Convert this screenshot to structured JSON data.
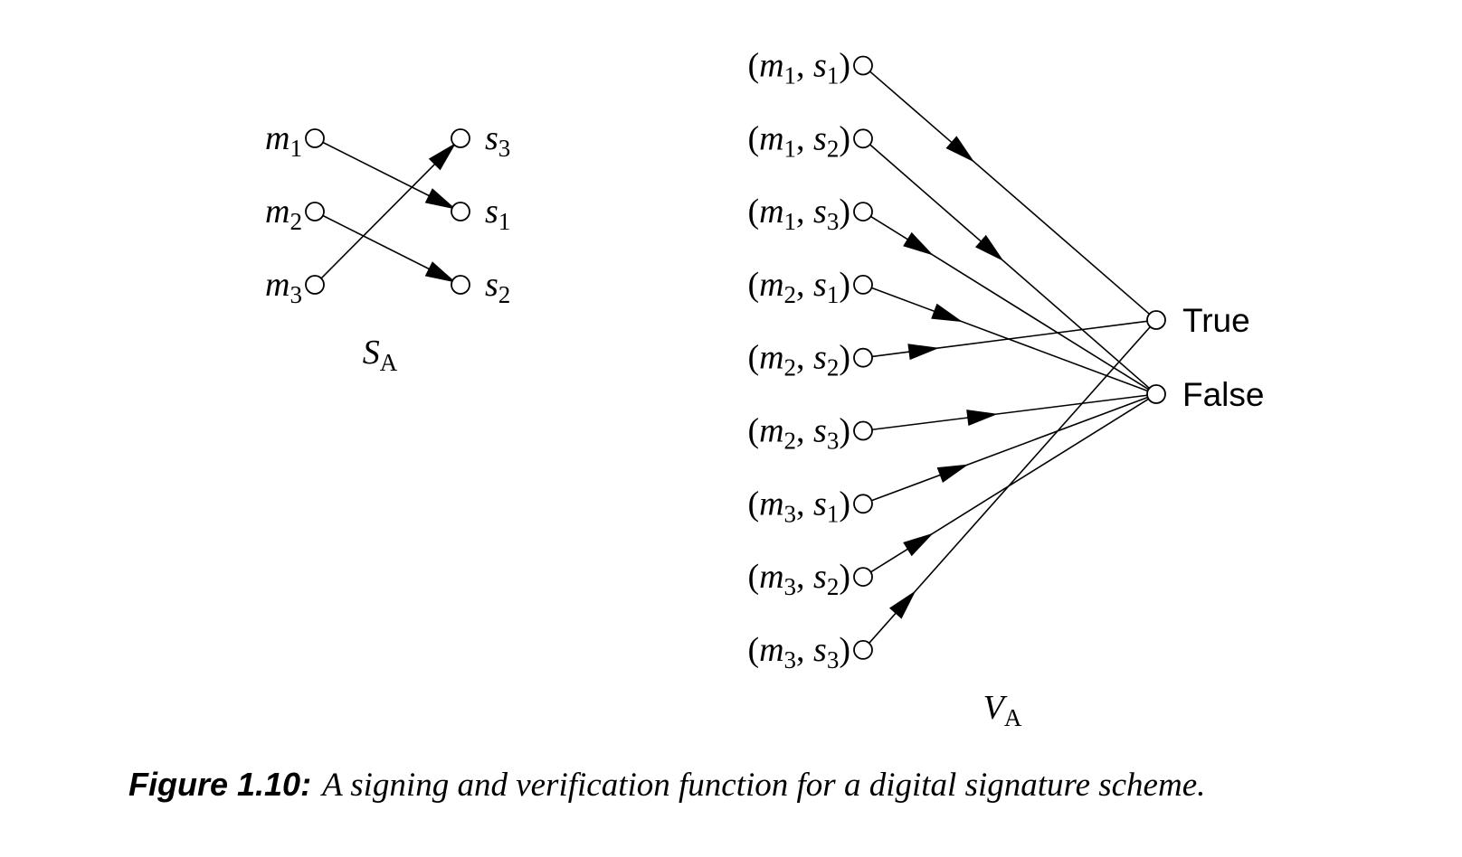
{
  "signing": {
    "messages": [
      [
        {
          "text": "m",
          "kind": "i"
        },
        {
          "text": "1",
          "kind": "sub"
        }
      ],
      [
        {
          "text": "m",
          "kind": "i"
        },
        {
          "text": "2",
          "kind": "sub"
        }
      ],
      [
        {
          "text": "m",
          "kind": "i"
        },
        {
          "text": "3",
          "kind": "sub"
        }
      ]
    ],
    "signatures": [
      [
        {
          "text": "s",
          "kind": "i"
        },
        {
          "text": "3",
          "kind": "sub"
        }
      ],
      [
        {
          "text": "s",
          "kind": "i"
        },
        {
          "text": "1",
          "kind": "sub"
        }
      ],
      [
        {
          "text": "s",
          "kind": "i"
        },
        {
          "text": "2",
          "kind": "sub"
        }
      ]
    ],
    "caption": [
      {
        "text": "S",
        "kind": "i"
      },
      {
        "text": "A",
        "kind": "sub"
      }
    ]
  },
  "verification": {
    "pairs": [
      [
        {
          "text": "(",
          "kind": "r"
        },
        {
          "text": "m",
          "kind": "i"
        },
        {
          "text": "1",
          "kind": "sub"
        },
        {
          "text": ", ",
          "kind": "r"
        },
        {
          "text": "s",
          "kind": "i"
        },
        {
          "text": "1",
          "kind": "sub"
        },
        {
          "text": ")",
          "kind": "r"
        }
      ],
      [
        {
          "text": "(",
          "kind": "r"
        },
        {
          "text": "m",
          "kind": "i"
        },
        {
          "text": "1",
          "kind": "sub"
        },
        {
          "text": ", ",
          "kind": "r"
        },
        {
          "text": "s",
          "kind": "i"
        },
        {
          "text": "2",
          "kind": "sub"
        },
        {
          "text": ")",
          "kind": "r"
        }
      ],
      [
        {
          "text": "(",
          "kind": "r"
        },
        {
          "text": "m",
          "kind": "i"
        },
        {
          "text": "1",
          "kind": "sub"
        },
        {
          "text": ", ",
          "kind": "r"
        },
        {
          "text": "s",
          "kind": "i"
        },
        {
          "text": "3",
          "kind": "sub"
        },
        {
          "text": ")",
          "kind": "r"
        }
      ],
      [
        {
          "text": "(",
          "kind": "r"
        },
        {
          "text": "m",
          "kind": "i"
        },
        {
          "text": "2",
          "kind": "sub"
        },
        {
          "text": ", ",
          "kind": "r"
        },
        {
          "text": "s",
          "kind": "i"
        },
        {
          "text": "1",
          "kind": "sub"
        },
        {
          "text": ")",
          "kind": "r"
        }
      ],
      [
        {
          "text": "(",
          "kind": "r"
        },
        {
          "text": "m",
          "kind": "i"
        },
        {
          "text": "2",
          "kind": "sub"
        },
        {
          "text": ", ",
          "kind": "r"
        },
        {
          "text": "s",
          "kind": "i"
        },
        {
          "text": "2",
          "kind": "sub"
        },
        {
          "text": ")",
          "kind": "r"
        }
      ],
      [
        {
          "text": "(",
          "kind": "r"
        },
        {
          "text": "m",
          "kind": "i"
        },
        {
          "text": "2",
          "kind": "sub"
        },
        {
          "text": ", ",
          "kind": "r"
        },
        {
          "text": "s",
          "kind": "i"
        },
        {
          "text": "3",
          "kind": "sub"
        },
        {
          "text": ")",
          "kind": "r"
        }
      ],
      [
        {
          "text": "(",
          "kind": "r"
        },
        {
          "text": "m",
          "kind": "i"
        },
        {
          "text": "3",
          "kind": "sub"
        },
        {
          "text": ", ",
          "kind": "r"
        },
        {
          "text": "s",
          "kind": "i"
        },
        {
          "text": "1",
          "kind": "sub"
        },
        {
          "text": ")",
          "kind": "r"
        }
      ],
      [
        {
          "text": "(",
          "kind": "r"
        },
        {
          "text": "m",
          "kind": "i"
        },
        {
          "text": "3",
          "kind": "sub"
        },
        {
          "text": ", ",
          "kind": "r"
        },
        {
          "text": "s",
          "kind": "i"
        },
        {
          "text": "2",
          "kind": "sub"
        },
        {
          "text": ")",
          "kind": "r"
        }
      ],
      [
        {
          "text": "(",
          "kind": "r"
        },
        {
          "text": "m",
          "kind": "i"
        },
        {
          "text": "3",
          "kind": "sub"
        },
        {
          "text": ", ",
          "kind": "r"
        },
        {
          "text": "s",
          "kind": "i"
        },
        {
          "text": "3",
          "kind": "sub"
        },
        {
          "text": ")",
          "kind": "r"
        }
      ]
    ],
    "outputs": [
      "True",
      "False"
    ],
    "caption": [
      {
        "text": "V",
        "kind": "i"
      },
      {
        "text": "A",
        "kind": "sub"
      }
    ]
  },
  "figure": {
    "number": "Figure 1.10:",
    "text": "A signing and verification function for a digital signature scheme."
  }
}
